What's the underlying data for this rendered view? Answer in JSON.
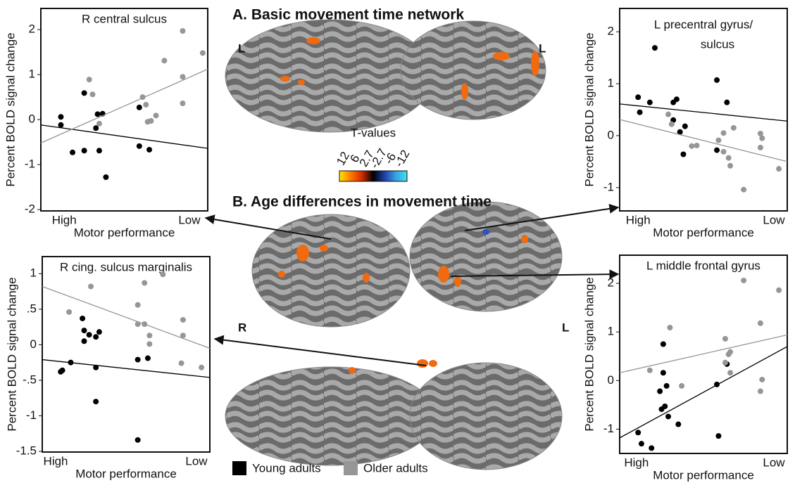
{
  "panel_a_title": "A. Basic movement time network",
  "panel_b_title": "B. Age differences in movement time",
  "colorbar": {
    "title": "T-values",
    "ticks": [
      12,
      6,
      2.7,
      -2.7,
      -6,
      -12
    ],
    "colors": [
      "#ffe600",
      "#ff7a00",
      "#d42a00",
      "#000000",
      "#1f3fa8",
      "#3aa0e0",
      "#40e0f0"
    ]
  },
  "brain_labels": [
    "L",
    "L",
    "R",
    "L"
  ],
  "chart_data": [
    {
      "type": "scatter",
      "title": "R central sulcus",
      "xlabel": "Motor performance",
      "ylabel": "Percent BOLD signal change",
      "xlim": [
        0,
        1
      ],
      "xticks": [
        {
          "value": 0.14,
          "label": "High"
        },
        {
          "value": 0.89,
          "label": "Low"
        }
      ],
      "ylim": [
        -2.03,
        2.47
      ],
      "yticks": [
        2,
        1,
        0,
        -1,
        -2
      ],
      "series": [
        {
          "name": "Young adults",
          "color": "#000000",
          "fit": [
            -0.12,
            -0.64
          ],
          "x": [
            0.12,
            0.12,
            0.19,
            0.26,
            0.34,
            0.37,
            0.33,
            0.26,
            0.35,
            0.39,
            0.59,
            0.59,
            0.65
          ],
          "values": [
            0.06,
            -0.12,
            -0.73,
            0.59,
            0.12,
            0.13,
            -0.19,
            -0.69,
            -0.69,
            -1.28,
            0.27,
            -0.59,
            -0.67
          ]
        },
        {
          "name": "Older adults",
          "color": "#969696",
          "fit": [
            -0.52,
            1.12
          ],
          "x": [
            0.29,
            0.31,
            0.35,
            0.61,
            0.63,
            0.64,
            0.66,
            0.69,
            0.74,
            0.85,
            0.85,
            0.85,
            0.97
          ],
          "values": [
            0.89,
            0.56,
            -0.09,
            0.5,
            0.33,
            -0.05,
            -0.03,
            0.09,
            1.31,
            1.97,
            0.95,
            0.36,
            1.48
          ]
        }
      ]
    },
    {
      "type": "scatter",
      "title": [
        "L precentral gyrus/",
        "sulcus"
      ],
      "xlabel": "Motor performance",
      "ylabel": "Percent BOLD signal change",
      "xlim": [
        0,
        1
      ],
      "xticks": [
        {
          "value": 0.11,
          "label": "High"
        },
        {
          "value": 0.92,
          "label": "Low"
        }
      ],
      "ylim": [
        -1.45,
        2.45
      ],
      "yticks": [
        2,
        1,
        0,
        -1
      ],
      "series": [
        {
          "name": "Young adults",
          "color": "#000000",
          "fit": [
            0.61,
            0.28
          ],
          "x": [
            0.11,
            0.12,
            0.18,
            0.21,
            0.32,
            0.34,
            0.32,
            0.39,
            0.36,
            0.38,
            0.58,
            0.64,
            0.58
          ],
          "values": [
            0.74,
            0.45,
            0.64,
            1.69,
            0.64,
            0.7,
            0.3,
            0.18,
            0.07,
            -0.36,
            1.07,
            0.64,
            -0.28
          ]
        },
        {
          "name": "Older adults",
          "color": "#969696",
          "fit": [
            0.31,
            -0.5
          ],
          "x": [
            0.29,
            0.31,
            0.43,
            0.46,
            0.62,
            0.59,
            0.68,
            0.62,
            0.65,
            0.66,
            0.74,
            0.84,
            0.85,
            0.84,
            0.95
          ],
          "values": [
            0.41,
            0.22,
            -0.2,
            -0.19,
            0.05,
            -0.09,
            0.15,
            -0.31,
            -0.43,
            -0.58,
            -1.04,
            0.04,
            -0.05,
            -0.23,
            -0.64
          ]
        }
      ]
    },
    {
      "type": "scatter",
      "title": "R cing. sulcus marginalis",
      "xlabel": "Motor performance",
      "ylabel": "Percent BOLD signal change",
      "xlim": [
        0,
        1
      ],
      "xticks": [
        {
          "value": 0.08,
          "label": "High"
        },
        {
          "value": 0.92,
          "label": "Low"
        }
      ],
      "ylim": [
        -1.51,
        1.24
      ],
      "yticks": [
        1,
        {
          "value": 0.5,
          "label": ".5"
        },
        0,
        {
          "value": -0.5,
          "label": "-.5"
        },
        -1,
        -1.5
      ],
      "series": [
        {
          "name": "Young adults",
          "color": "#000000",
          "fit": [
            -0.21,
            -0.46
          ],
          "x": [
            0.11,
            0.12,
            0.17,
            0.24,
            0.25,
            0.28,
            0.32,
            0.25,
            0.34,
            0.32,
            0.32,
            0.57,
            0.63,
            0.57
          ],
          "values": [
            -0.38,
            -0.36,
            -0.25,
            0.37,
            0.2,
            0.14,
            0.11,
            0.05,
            0.18,
            -0.32,
            -0.8,
            -0.21,
            -0.19,
            -1.34
          ]
        },
        {
          "name": "Older adults",
          "color": "#969696",
          "fit": [
            0.82,
            -0.05
          ],
          "x": [
            0.16,
            0.29,
            0.57,
            0.57,
            0.61,
            0.61,
            0.64,
            0.64,
            0.72,
            0.84,
            0.84,
            0.83,
            0.95
          ],
          "values": [
            0.46,
            0.82,
            0.56,
            0.29,
            0.29,
            0.87,
            0.13,
            0.01,
            0.99,
            0.35,
            0.13,
            -0.26,
            -0.32
          ]
        }
      ]
    },
    {
      "type": "scatter",
      "title": "L middle frontal gyrus",
      "xlabel": "Motor performance",
      "ylabel": "Percent BOLD signal change",
      "xlim": [
        0,
        1
      ],
      "xticks": [
        {
          "value": 0.1,
          "label": "High"
        },
        {
          "value": 0.92,
          "label": "Low"
        }
      ],
      "ylim": [
        -1.5,
        2.58
      ],
      "yticks": [
        2,
        1,
        0,
        -1
      ],
      "series": [
        {
          "name": "Young adults",
          "color": "#000000",
          "fit": [
            -1.18,
            0.7
          ],
          "x": [
            0.11,
            0.13,
            0.19,
            0.24,
            0.25,
            0.26,
            0.26,
            0.28,
            0.27,
            0.29,
            0.35,
            0.58,
            0.59,
            0.64
          ],
          "values": [
            -1.07,
            -1.3,
            -1.39,
            -0.22,
            -0.59,
            0.16,
            0.75,
            -0.11,
            -0.53,
            -0.74,
            -0.9,
            -0.08,
            -1.14,
            0.34
          ]
        },
        {
          "name": "Older adults",
          "color": "#969696",
          "fit": [
            0.16,
            0.94
          ],
          "x": [
            0.18,
            0.3,
            0.37,
            0.63,
            0.63,
            0.65,
            0.66,
            0.66,
            0.74,
            0.84,
            0.85,
            0.84,
            0.95
          ],
          "values": [
            0.21,
            1.09,
            -0.11,
            0.86,
            0.37,
            0.54,
            0.59,
            0.16,
            2.06,
            1.18,
            0.02,
            -0.22,
            1.86
          ]
        }
      ]
    }
  ]
}
